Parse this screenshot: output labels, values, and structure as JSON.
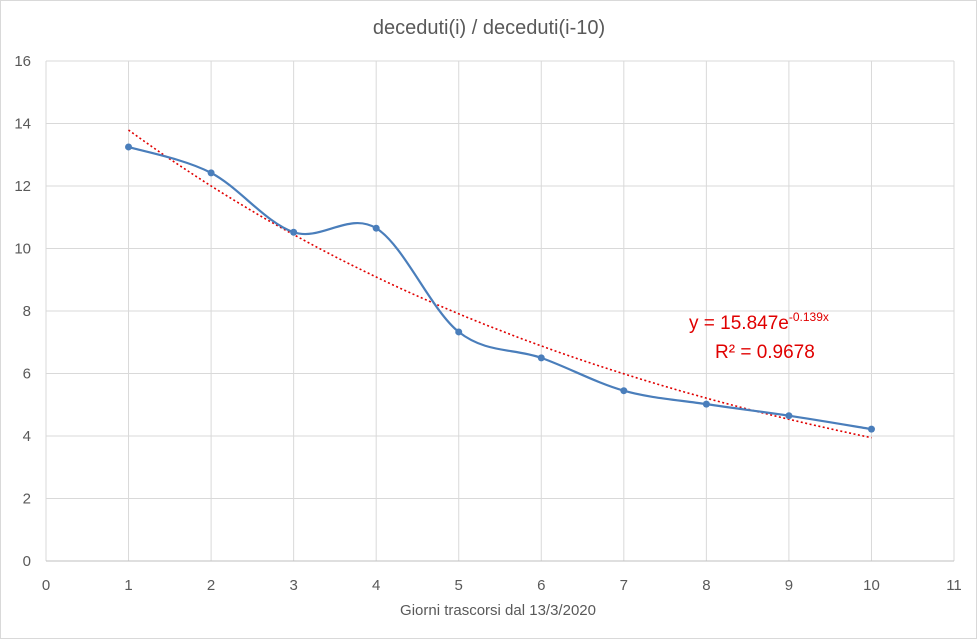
{
  "chart_data": {
    "type": "scatter",
    "title": "deceduti(i) / deceduti(i-10)",
    "xlabel": "Giorni trascorsi dal 13/3/2020",
    "ylabel": "",
    "xlim": [
      0,
      11
    ],
    "ylim": [
      0,
      16
    ],
    "x_ticks": [
      0,
      1,
      2,
      3,
      4,
      5,
      6,
      7,
      8,
      9,
      10,
      11
    ],
    "y_ticks": [
      0,
      2,
      4,
      6,
      8,
      10,
      12,
      14,
      16
    ],
    "grid": true,
    "legend": "none",
    "series": [
      {
        "line": "smooth",
        "marker": "circle",
        "color": "#4a7ebb",
        "x": [
          1,
          2,
          3,
          4,
          5,
          6,
          7,
          8,
          9,
          10
        ],
        "y": [
          13.25,
          12.42,
          10.52,
          10.65,
          7.33,
          6.5,
          5.45,
          5.02,
          4.65,
          4.22
        ]
      }
    ],
    "trendline": {
      "type": "exponential",
      "color": "#e00000",
      "style": "dotted",
      "a": 15.847,
      "b": -0.139,
      "x_range": [
        1,
        10
      ],
      "equation_prefix": "y = 15.847e",
      "equation_exponent": "-0.139x",
      "r_squared_label": "R² = 0.9678"
    }
  }
}
